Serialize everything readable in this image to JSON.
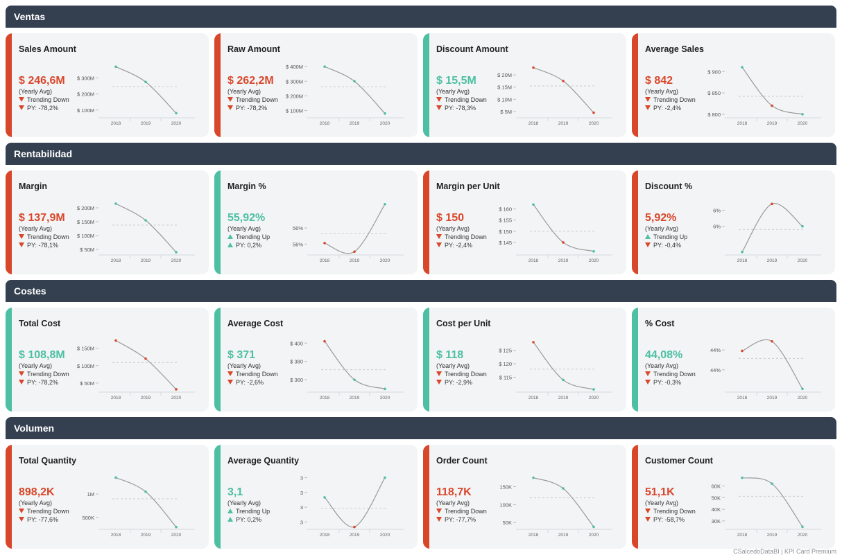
{
  "sections": [
    {
      "title": "Ventas"
    },
    {
      "title": "Rentabilidad"
    },
    {
      "title": "Costes"
    },
    {
      "title": "Volumen"
    }
  ],
  "colors": {
    "header_bg": "#344050",
    "good": "#4dbfa3",
    "bad": "#d9472b",
    "card_bg": "#f2f4f5",
    "line": "#999999",
    "avg_line": "#cccccc"
  },
  "avg_label": "(Yearly Avg)",
  "footer": "CSalcedoDataBI | KPI Card Premium",
  "chart_data": [
    {
      "type": "line",
      "title": "Sales Amount",
      "value": "$ 246,6M",
      "trend": "Trending Down",
      "trend_dir": "down",
      "py": "PY: -78,2%",
      "py_dir": "down",
      "status": "bad",
      "x": [
        "2018",
        "2019",
        "2020"
      ],
      "values": [
        370,
        275,
        80
      ],
      "ylim": [
        60,
        380
      ],
      "avg": 246.6,
      "ticks": [
        {
          "v": 300,
          "label": "$ 300M"
        },
        {
          "v": 200,
          "label": "$ 200M"
        },
        {
          "v": 100,
          "label": "$ 100M"
        }
      ],
      "point_colors": [
        "#4dbfa3",
        "#4dbfa3",
        "#4dbfa3"
      ]
    },
    {
      "type": "line",
      "title": "Raw Amount",
      "value": "$ 262,2M",
      "trend": "Trending Down",
      "trend_dir": "down",
      "py": "PY: -78,2%",
      "py_dir": "down",
      "status": "bad",
      "x": [
        "2018",
        "2019",
        "2020"
      ],
      "values": [
        400,
        300,
        80
      ],
      "ylim": [
        60,
        410
      ],
      "avg": 262.2,
      "ticks": [
        {
          "v": 400,
          "label": "$ 400M"
        },
        {
          "v": 300,
          "label": "$ 300M"
        },
        {
          "v": 200,
          "label": "$ 200M"
        },
        {
          "v": 100,
          "label": "$ 100M"
        }
      ],
      "point_colors": [
        "#4dbfa3",
        "#4dbfa3",
        "#4dbfa3"
      ]
    },
    {
      "type": "line",
      "title": "Discount Amount",
      "value": "$ 15,5M",
      "trend": "Trending Down",
      "trend_dir": "down",
      "py": "PY: -78,3%",
      "py_dir": "down",
      "status": "good",
      "x": [
        "2018",
        "2019",
        "2020"
      ],
      "values": [
        23,
        17.5,
        4.5
      ],
      "ylim": [
        3,
        24
      ],
      "avg": 15.5,
      "ticks": [
        {
          "v": 20,
          "label": "$ 20M"
        },
        {
          "v": 15,
          "label": "$ 15M"
        },
        {
          "v": 10,
          "label": "$ 10M"
        },
        {
          "v": 5,
          "label": "$ 5M"
        }
      ],
      "point_colors": [
        "#d9472b",
        "#d9472b",
        "#d9472b"
      ]
    },
    {
      "type": "line",
      "title": "Average Sales",
      "value": "$ 842",
      "trend": "Trending Down",
      "trend_dir": "down",
      "py": "PY: -2,4%",
      "py_dir": "down",
      "status": "bad",
      "x": [
        "2018",
        "2019",
        "2020"
      ],
      "values": [
        910,
        820,
        800
      ],
      "ylim": [
        795,
        915
      ],
      "avg": 842,
      "ticks": [
        {
          "v": 900,
          "label": "$ 900"
        },
        {
          "v": 850,
          "label": "$ 850"
        },
        {
          "v": 800,
          "label": "$ 800"
        }
      ],
      "point_colors": [
        "#4dbfa3",
        "#d9472b",
        "#4dbfa3"
      ]
    },
    {
      "type": "line",
      "title": "Margin",
      "value": "$ 137,9M",
      "trend": "Trending Down",
      "trend_dir": "down",
      "py": "PY: -78,1%",
      "py_dir": "down",
      "status": "bad",
      "x": [
        "2018",
        "2019",
        "2020"
      ],
      "values": [
        215,
        155,
        40
      ],
      "ylim": [
        35,
        220
      ],
      "avg": 137.9,
      "ticks": [
        {
          "v": 200,
          "label": "$ 200M"
        },
        {
          "v": 150,
          "label": "$ 150M"
        },
        {
          "v": 100,
          "label": "$ 100M"
        },
        {
          "v": 50,
          "label": "$ 50M"
        }
      ],
      "point_colors": [
        "#4dbfa3",
        "#4dbfa3",
        "#4dbfa3"
      ]
    },
    {
      "type": "line",
      "title": "Margin %",
      "value": "55,92%",
      "trend": "Trending Up",
      "trend_dir": "up",
      "py": "PY: 0,2%",
      "py_dir": "up",
      "status": "good",
      "x": [
        "2018",
        "2019",
        "2020"
      ],
      "values": [
        55.89,
        55.8,
        56.3
      ],
      "ylim": [
        55.78,
        56.32
      ],
      "avg": 55.99,
      "ticks": [
        {
          "v": 56.05,
          "label": "56%"
        },
        {
          "v": 55.88,
          "label": "56%"
        }
      ],
      "point_colors": [
        "#d9472b",
        "#d9472b",
        "#4dbfa3"
      ]
    },
    {
      "type": "line",
      "title": "Margin per Unit",
      "value": "$ 150",
      "trend": "Trending Down",
      "trend_dir": "down",
      "py": "PY: -2,4%",
      "py_dir": "down",
      "status": "bad",
      "x": [
        "2018",
        "2019",
        "2020"
      ],
      "values": [
        162,
        145,
        141
      ],
      "ylim": [
        140,
        163
      ],
      "avg": 150,
      "ticks": [
        {
          "v": 160,
          "label": "$ 160"
        },
        {
          "v": 155,
          "label": "$ 155"
        },
        {
          "v": 150,
          "label": "$ 150"
        },
        {
          "v": 145,
          "label": "$ 145"
        }
      ],
      "point_colors": [
        "#4dbfa3",
        "#d9472b",
        "#4dbfa3"
      ]
    },
    {
      "type": "line",
      "title": "Discount %",
      "value": "5,92%",
      "trend": "Trending Up",
      "trend_dir": "up",
      "py": "PY: -0,4%",
      "py_dir": "down",
      "status": "bad",
      "x": [
        "2018",
        "2019",
        "2020"
      ],
      "values": [
        5.8,
        6.1,
        5.96
      ],
      "ylim": [
        5.79,
        6.11
      ],
      "avg": 5.94,
      "ticks": [
        {
          "v": 6.06,
          "label": "6%"
        },
        {
          "v": 5.96,
          "label": "6%"
        }
      ],
      "point_colors": [
        "#4dbfa3",
        "#d9472b",
        "#4dbfa3"
      ]
    },
    {
      "type": "line",
      "title": "Total Cost",
      "value": "$ 108,8M",
      "trend": "Trending Down",
      "trend_dir": "down",
      "py": "PY: -78,2%",
      "py_dir": "down",
      "status": "good",
      "x": [
        "2018",
        "2019",
        "2020"
      ],
      "values": [
        172,
        120,
        32
      ],
      "ylim": [
        28,
        175
      ],
      "avg": 108.8,
      "ticks": [
        {
          "v": 150,
          "label": "$ 150M"
        },
        {
          "v": 100,
          "label": "$ 100M"
        },
        {
          "v": 50,
          "label": "$ 50M"
        }
      ],
      "point_colors": [
        "#d9472b",
        "#d9472b",
        "#d9472b"
      ]
    },
    {
      "type": "line",
      "title": "Average Cost",
      "value": "$ 371",
      "trend": "Trending Down",
      "trend_dir": "down",
      "py": "PY: -2,6%",
      "py_dir": "down",
      "status": "good",
      "x": [
        "2018",
        "2019",
        "2020"
      ],
      "values": [
        402,
        360,
        350
      ],
      "ylim": [
        348,
        404
      ],
      "avg": 371,
      "ticks": [
        {
          "v": 400,
          "label": "$ 400"
        },
        {
          "v": 380,
          "label": "$ 380"
        },
        {
          "v": 360,
          "label": "$ 360"
        }
      ],
      "point_colors": [
        "#d9472b",
        "#4dbfa3",
        "#4dbfa3"
      ]
    },
    {
      "type": "line",
      "title": "Cost per Unit",
      "value": "$ 118",
      "trend": "Trending Down",
      "trend_dir": "down",
      "py": "PY: -2,9%",
      "py_dir": "down",
      "status": "good",
      "x": [
        "2018",
        "2019",
        "2020"
      ],
      "values": [
        128,
        114,
        110.5
      ],
      "ylim": [
        110,
        129
      ],
      "avg": 118,
      "ticks": [
        {
          "v": 125,
          "label": "$ 125"
        },
        {
          "v": 120,
          "label": "$ 120"
        },
        {
          "v": 115,
          "label": "$ 115"
        }
      ],
      "point_colors": [
        "#d9472b",
        "#4dbfa3",
        "#4dbfa3"
      ]
    },
    {
      "type": "line",
      "title": "% Cost",
      "value": "44,08%",
      "trend": "Trending Down",
      "trend_dir": "down",
      "py": "PY: -0,3%",
      "py_dir": "down",
      "status": "good",
      "x": [
        "2018",
        "2019",
        "2020"
      ],
      "values": [
        44.2,
        44.3,
        43.8
      ],
      "ylim": [
        43.78,
        44.32
      ],
      "avg": 44.12,
      "ticks": [
        {
          "v": 44.21,
          "label": "44%"
        },
        {
          "v": 44.0,
          "label": "44%"
        }
      ],
      "point_colors": [
        "#d9472b",
        "#d9472b",
        "#4dbfa3"
      ]
    },
    {
      "type": "line",
      "title": "Total Quantity",
      "value": "898,2K",
      "trend": "Trending Down",
      "trend_dir": "down",
      "py": "PY: -77,6%",
      "py_dir": "down",
      "status": "bad",
      "x": [
        "2018",
        "2019",
        "2020"
      ],
      "values": [
        1350,
        1050,
        300
      ],
      "ylim": [
        280,
        1370
      ],
      "avg": 898.2,
      "ticks": [
        {
          "v": 1000,
          "label": "1M"
        },
        {
          "v": 500,
          "label": "500K"
        }
      ],
      "point_colors": [
        "#4dbfa3",
        "#4dbfa3",
        "#4dbfa3"
      ]
    },
    {
      "type": "line",
      "title": "Average Quantity",
      "value": "3,1",
      "trend": "Trending Up",
      "trend_dir": "up",
      "py": "PY: 0,2%",
      "py_dir": "up",
      "status": "good",
      "x": [
        "2018",
        "2019",
        "2020"
      ],
      "values": [
        3.25,
        2.95,
        3.45
      ],
      "ylim": [
        2.94,
        3.46
      ],
      "avg": 3.14,
      "ticks": [
        {
          "v": 3.45,
          "label": "3"
        },
        {
          "v": 3.3,
          "label": "3"
        },
        {
          "v": 3.15,
          "label": "3"
        },
        {
          "v": 3.0,
          "label": "3"
        }
      ],
      "point_colors": [
        "#4dbfa3",
        "#d9472b",
        "#4dbfa3"
      ]
    },
    {
      "type": "line",
      "title": "Order Count",
      "value": "118,7K",
      "trend": "Trending Down",
      "trend_dir": "down",
      "py": "PY: -77,7%",
      "py_dir": "down",
      "status": "bad",
      "x": [
        "2018",
        "2019",
        "2020"
      ],
      "values": [
        175,
        145,
        38
      ],
      "ylim": [
        35,
        178
      ],
      "avg": 118.7,
      "ticks": [
        {
          "v": 150,
          "label": "150K"
        },
        {
          "v": 100,
          "label": "100K"
        },
        {
          "v": 50,
          "label": "50K"
        }
      ],
      "point_colors": [
        "#4dbfa3",
        "#4dbfa3",
        "#4dbfa3"
      ]
    },
    {
      "type": "line",
      "title": "Customer Count",
      "value": "51,1K",
      "trend": "Trending Down",
      "trend_dir": "down",
      "py": "PY: -58,7%",
      "py_dir": "down",
      "status": "bad",
      "x": [
        "2018",
        "2019",
        "2020"
      ],
      "values": [
        67,
        62,
        25
      ],
      "ylim": [
        24,
        68
      ],
      "avg": 51.1,
      "ticks": [
        {
          "v": 60,
          "label": "60K"
        },
        {
          "v": 50,
          "label": "50K"
        },
        {
          "v": 40,
          "label": "40K"
        },
        {
          "v": 30,
          "label": "30K"
        }
      ],
      "point_colors": [
        "#4dbfa3",
        "#4dbfa3",
        "#4dbfa3"
      ]
    }
  ]
}
